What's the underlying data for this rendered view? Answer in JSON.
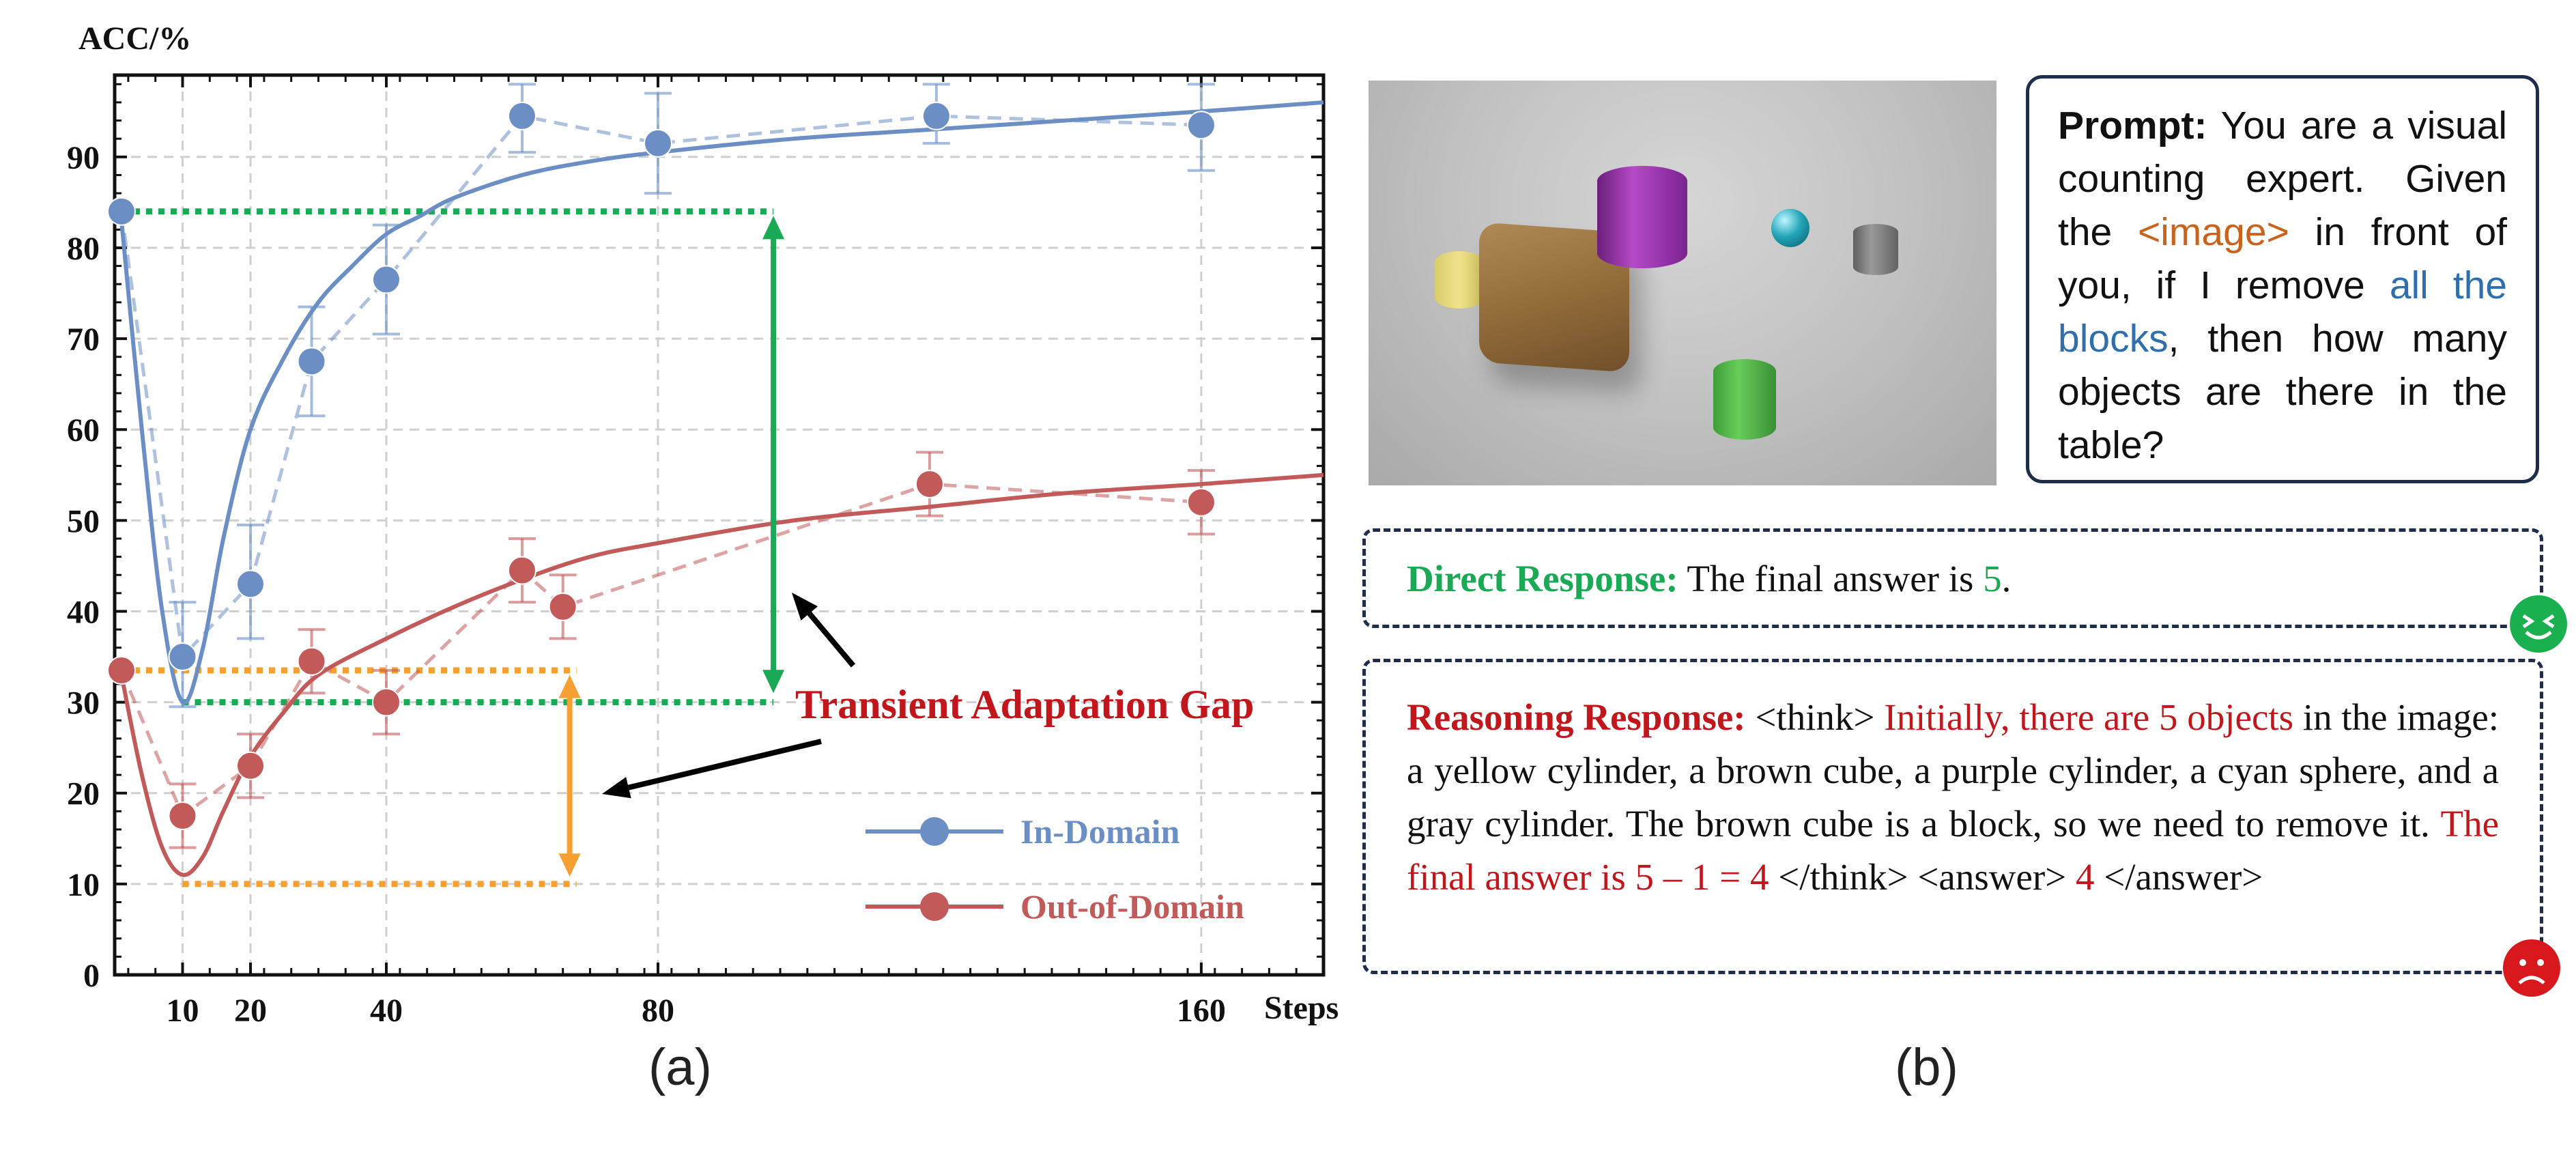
{
  "chart_data": {
    "type": "line",
    "ylabel": "ACC/%",
    "xlabel": "Steps",
    "xlim": [
      0,
      178
    ],
    "ylim": [
      0,
      99
    ],
    "x_ticks": [
      10,
      20,
      40,
      80,
      160
    ],
    "y_ticks": [
      0,
      10,
      20,
      30,
      40,
      50,
      60,
      70,
      80,
      90
    ],
    "grid": true,
    "legend": "bottom-right",
    "series": [
      {
        "name": "In-Domain",
        "color": "#6b8fc4",
        "x": [
          1,
          10,
          20,
          29,
          40,
          60,
          80,
          121,
          160
        ],
        "y": [
          84,
          35,
          43,
          67.5,
          76.5,
          94.5,
          91.5,
          94.5,
          93.5
        ],
        "err_low": [
          84,
          29.5,
          37,
          61.5,
          70.5,
          90.5,
          86,
          91.5,
          88.5
        ],
        "err_high": [
          84,
          41,
          49.5,
          73.5,
          82.5,
          98,
          97,
          98,
          98
        ],
        "fit_x": [
          1,
          4,
          7,
          10,
          13,
          16,
          20,
          25,
          30,
          35,
          40,
          45,
          50,
          60,
          70,
          80,
          100,
          120,
          140,
          160,
          178
        ],
        "fit_y": [
          83,
          60,
          40,
          30,
          36,
          48,
          60,
          68,
          74,
          78,
          81.5,
          83.5,
          85.5,
          88,
          89.5,
          90.5,
          92,
          93,
          94,
          95,
          96
        ]
      },
      {
        "name": "Out-of-Domain",
        "color": "#c25a5a",
        "x": [
          1,
          10,
          20,
          29,
          40,
          60,
          66,
          120,
          160
        ],
        "y": [
          33.5,
          17.5,
          23,
          34.5,
          30,
          44.5,
          40.5,
          54,
          52
        ],
        "err_low": [
          33.5,
          14,
          19.5,
          31,
          26.5,
          41,
          37,
          50.5,
          48.5
        ],
        "err_high": [
          33.5,
          21,
          26.5,
          38,
          33.5,
          48,
          44,
          57.5,
          55.5
        ],
        "fit_x": [
          1,
          4,
          7,
          10,
          13,
          16,
          20,
          25,
          30,
          40,
          50,
          60,
          70,
          80,
          100,
          120,
          140,
          160,
          178
        ],
        "fit_y": [
          33,
          22,
          14,
          11,
          13,
          18,
          24,
          29,
          33,
          37,
          40.5,
          43.5,
          46,
          47.5,
          50,
          51.5,
          53,
          54,
          55
        ]
      }
    ],
    "annotations": {
      "gap_label": "Transient Adaptation Gap",
      "green_color": "#1aaa55",
      "orange_color": "#f5a030",
      "label_color": "#c0161c"
    }
  },
  "captions": {
    "a": "(a)",
    "b": "(b)"
  },
  "prompt": {
    "label": "Prompt:",
    "t1": " You are a visual counting expert. Given the ",
    "image_tag": "<image>",
    "t2": " in front of you, if I remove ",
    "blocks": "all the blocks",
    "t3": ", then how many objects are there in the table?"
  },
  "direct": {
    "label": "Direct Response:",
    "text": " The final answer is ",
    "answer": "5",
    "end": "."
  },
  "reasoning": {
    "label": "Reasoning Response:",
    "think_open": " <think> ",
    "red1": "Initially, there are 5 objects",
    "text1": " in the image: a yellow cylinder, a brown cube, a purple cylinder, a cyan sphere, and a gray cylinder. The brown cube is a block, so we need to remove it. ",
    "red2": "The final answer is 5 – 1 = 4",
    "think_close": " </think> <answer> ",
    "red3": "4",
    "answer_close": " </answer>"
  },
  "colors": {
    "box_border": "#1f2d4d",
    "happy": "#1ab04f",
    "sad": "#d9181e"
  }
}
